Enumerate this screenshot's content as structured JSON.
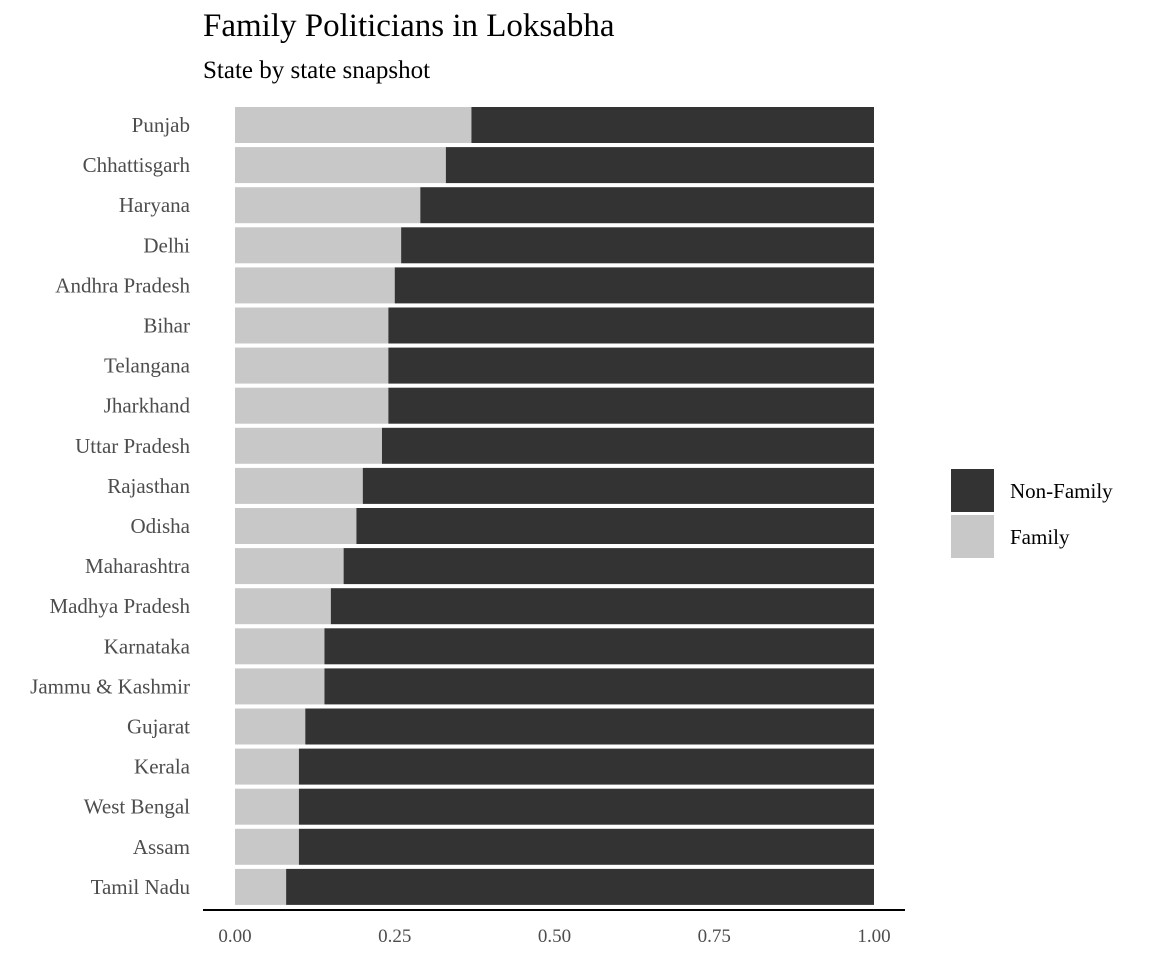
{
  "chart_data": {
    "type": "bar",
    "orientation": "horizontal",
    "stacked": true,
    "title": "Family Politicians in Loksabha",
    "subtitle": "State by state snapshot",
    "xlabel": "",
    "ylabel": "",
    "xlim": [
      0,
      1
    ],
    "x_ticks": [
      "0.00",
      "0.25",
      "0.50",
      "0.75",
      "1.00"
    ],
    "x_tick_values": [
      0,
      0.25,
      0.5,
      0.75,
      1
    ],
    "grid": false,
    "legend_position": "right",
    "categories": [
      "Punjab",
      "Chhattisgarh",
      "Haryana",
      "Delhi",
      "Andhra Pradesh",
      "Bihar",
      "Telangana",
      "Jharkhand",
      "Uttar Pradesh",
      "Rajasthan",
      "Odisha",
      "Maharashtra",
      "Madhya Pradesh",
      "Karnataka",
      "Jammu & Kashmir",
      "Gujarat",
      "Kerala",
      "West Bengal",
      "Assam",
      "Tamil Nadu"
    ],
    "series": [
      {
        "name": "Family",
        "color": "#c8c8c8",
        "values": [
          0.37,
          0.33,
          0.29,
          0.26,
          0.25,
          0.24,
          0.24,
          0.24,
          0.23,
          0.2,
          0.19,
          0.17,
          0.15,
          0.14,
          0.14,
          0.11,
          0.1,
          0.1,
          0.1,
          0.08
        ]
      },
      {
        "name": "Non-Family",
        "color": "#333333",
        "values": [
          0.63,
          0.67,
          0.71,
          0.74,
          0.75,
          0.76,
          0.76,
          0.76,
          0.77,
          0.8,
          0.81,
          0.83,
          0.85,
          0.86,
          0.86,
          0.89,
          0.9,
          0.9,
          0.9,
          0.92
        ]
      }
    ],
    "legend_order": [
      "Non-Family",
      "Family"
    ]
  }
}
